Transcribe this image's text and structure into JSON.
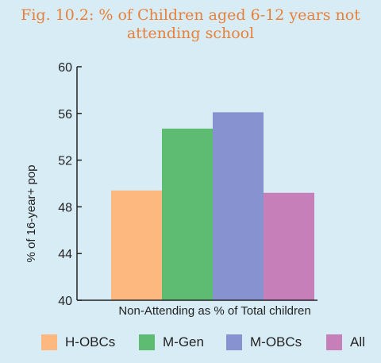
{
  "chart_data": {
    "type": "bar",
    "title_lines": [
      "Fig. 10.2: % of Children aged 6-12 years not",
      "attending school"
    ],
    "xlabel": "Non-Attending as % of Total children",
    "ylabel": "% of 16-year+ pop",
    "ylim": [
      40,
      60
    ],
    "yticks": [
      40,
      44,
      48,
      52,
      56,
      60
    ],
    "categories": [
      "H-OBCs",
      "M-Gen",
      "M-OBCs",
      "All"
    ],
    "values": [
      49.4,
      54.7,
      56.1,
      49.2
    ],
    "colors": [
      "#fdb880",
      "#5dbb72",
      "#8693d0",
      "#c67fb8"
    ],
    "legend": [
      {
        "label": "H-OBCs",
        "color": "#fdb880"
      },
      {
        "label": "M-Gen",
        "color": "#5dbb72"
      },
      {
        "label": "M-OBCs",
        "color": "#8693d0"
      },
      {
        "label": "All",
        "color": "#c67fb8"
      }
    ],
    "legend_position": "bottom",
    "grid": false
  }
}
